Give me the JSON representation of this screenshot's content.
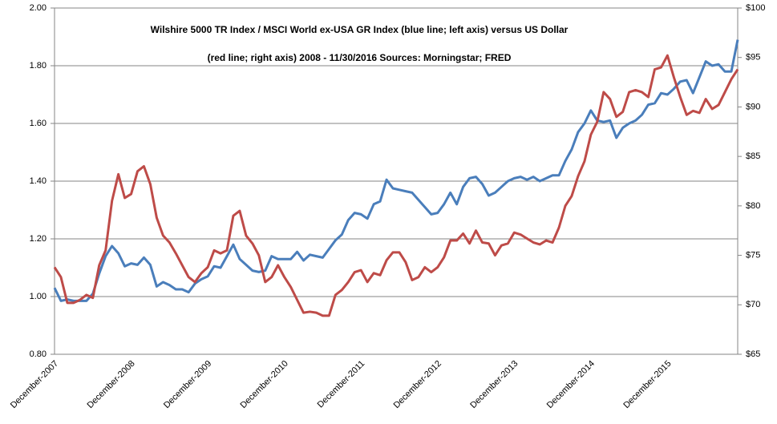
{
  "chart_data": {
    "type": "line",
    "title": [
      "Wilshire 5000 TR Index / MSCI World  ex-USA GR Index (blue line; left axis) versus US Dollar",
      "(red line; right axis) 2008  - 11/30/2016   Sources:  Morningstar; FRED"
    ],
    "categories": [
      "December-2007",
      null,
      null,
      null,
      null,
      null,
      null,
      null,
      null,
      null,
      null,
      null,
      "December-2008",
      null,
      null,
      null,
      null,
      null,
      null,
      null,
      null,
      null,
      null,
      null,
      "December-2009",
      null,
      null,
      null,
      null,
      null,
      null,
      null,
      null,
      null,
      null,
      null,
      "December-2010",
      null,
      null,
      null,
      null,
      null,
      null,
      null,
      null,
      null,
      null,
      null,
      "December-2011",
      null,
      null,
      null,
      null,
      null,
      null,
      null,
      null,
      null,
      null,
      null,
      "December-2012",
      null,
      null,
      null,
      null,
      null,
      null,
      null,
      null,
      null,
      null,
      null,
      "December-2013",
      null,
      null,
      null,
      null,
      null,
      null,
      null,
      null,
      null,
      null,
      null,
      "December-2014",
      null,
      null,
      null,
      null,
      null,
      null,
      null,
      null,
      null,
      null,
      null,
      "December-2015",
      null,
      null,
      null,
      null,
      null,
      null,
      null,
      null,
      null,
      null,
      null
    ],
    "series": [
      {
        "color": "#4a7ebb",
        "axis": "y",
        "values": [
          1.03,
          0.985,
          0.99,
          0.985,
          0.985,
          0.985,
          1.01,
          1.08,
          1.14,
          1.175,
          1.15,
          1.105,
          1.115,
          1.11,
          1.135,
          1.11,
          1.035,
          1.05,
          1.04,
          1.025,
          1.025,
          1.015,
          1.045,
          1.06,
          1.07,
          1.105,
          1.1,
          1.14,
          1.18,
          1.13,
          1.11,
          1.09,
          1.085,
          1.09,
          1.14,
          1.13,
          1.13,
          1.13,
          1.155,
          1.125,
          1.145,
          1.14,
          1.135,
          1.165,
          1.195,
          1.215,
          1.265,
          1.29,
          1.285,
          1.27,
          1.32,
          1.33,
          1.405,
          1.375,
          1.37,
          1.365,
          1.36,
          1.335,
          1.31,
          1.285,
          1.29,
          1.32,
          1.36,
          1.32,
          1.38,
          1.41,
          1.415,
          1.39,
          1.35,
          1.36,
          1.38,
          1.4,
          1.41,
          1.415,
          1.405,
          1.415,
          1.4,
          1.41,
          1.42,
          1.42,
          1.47,
          1.51,
          1.57,
          1.6,
          1.645,
          1.61,
          1.605,
          1.61,
          1.55,
          1.585,
          1.6,
          1.61,
          1.63,
          1.665,
          1.67,
          1.705,
          1.7,
          1.72,
          1.745,
          1.75,
          1.705,
          1.76,
          1.815,
          1.8,
          1.805,
          1.78,
          1.78,
          1.89
        ]
      },
      {
        "color": "#be4b48",
        "axis": "y2",
        "values": [
          73.8,
          72.8,
          70.2,
          70.2,
          70.5,
          71.0,
          70.7,
          74.0,
          75.5,
          80.5,
          83.2,
          80.8,
          81.2,
          83.5,
          84.0,
          82.2,
          78.8,
          77.0,
          76.3,
          75.2,
          74.0,
          72.8,
          72.3,
          73.2,
          73.8,
          75.5,
          75.2,
          75.5,
          79.0,
          79.5,
          77.0,
          76.2,
          75.0,
          72.3,
          72.8,
          74.0,
          72.8,
          71.8,
          70.5,
          69.2,
          69.3,
          69.2,
          68.9,
          68.9,
          71.0,
          71.5,
          72.3,
          73.3,
          73.5,
          72.3,
          73.2,
          73.0,
          74.5,
          75.3,
          75.3,
          74.3,
          72.5,
          72.8,
          73.8,
          73.3,
          73.8,
          74.8,
          76.5,
          76.5,
          77.2,
          76.2,
          77.5,
          76.3,
          76.2,
          75.0,
          76.0,
          76.2,
          77.3,
          77.1,
          76.7,
          76.3,
          76.1,
          76.5,
          76.3,
          77.8,
          80.0,
          81.0,
          83.0,
          84.5,
          87.2,
          88.5,
          91.5,
          90.8,
          89.0,
          89.5,
          91.5,
          91.7,
          91.5,
          91.0,
          93.8,
          94.0,
          95.2,
          93.0,
          91.0,
          89.2,
          89.6,
          89.4,
          90.8,
          89.8,
          90.2,
          91.5,
          92.8,
          93.8
        ]
      }
    ],
    "ylim": [
      0.8,
      2.0
    ],
    "yticks": [
      {
        "value": 0.8,
        "label": "0.80"
      },
      {
        "value": 1.0,
        "label": "1.00"
      },
      {
        "value": 1.2,
        "label": "1.20"
      },
      {
        "value": 1.4,
        "label": "1.40"
      },
      {
        "value": 1.6,
        "label": "1.60"
      },
      {
        "value": 1.8,
        "label": "1.80"
      },
      {
        "value": 2.0,
        "label": "2.00"
      }
    ],
    "y2lim": [
      65,
      100
    ],
    "y2ticks": [
      {
        "value": 65,
        "label": "$65"
      },
      {
        "value": 70,
        "label": "$70"
      },
      {
        "value": 75,
        "label": "$75"
      },
      {
        "value": 80,
        "label": "$80"
      },
      {
        "value": 85,
        "label": "$85"
      },
      {
        "value": 90,
        "label": "$90"
      },
      {
        "value": 95,
        "label": "$95"
      },
      {
        "value": 100,
        "label": "$100"
      }
    ],
    "grid": true
  }
}
